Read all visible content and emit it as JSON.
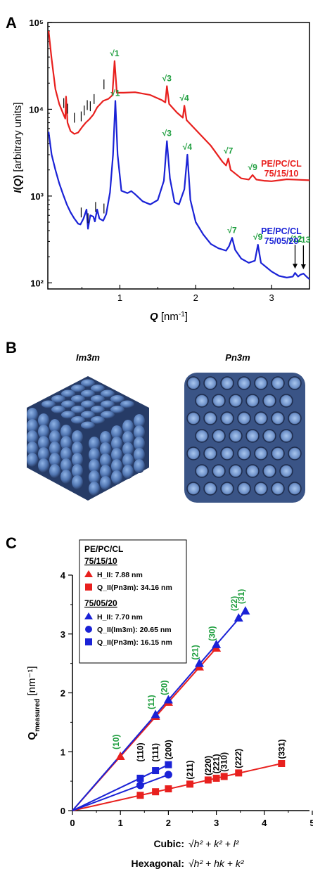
{
  "panels": {
    "A": {
      "label": "A"
    },
    "B": {
      "label": "B",
      "left_title": "Im3m",
      "right_title": "Pn3m"
    },
    "C": {
      "label": "C"
    }
  },
  "colors": {
    "red": "#e8201e",
    "blue": "#1a22d6",
    "green": "#1e9e3e",
    "black": "#000000",
    "surface": "#5b7fb6"
  },
  "chart_data": [
    {
      "type": "line",
      "title": "",
      "xlabel": "Q [nm⁻¹]",
      "ylabel": "I(Q) [arbitrary units]",
      "y_scale": "log",
      "xlim": [
        0.05,
        3.5
      ],
      "ylim": [
        85,
        100000
      ],
      "x_ticks": [
        1,
        2,
        3
      ],
      "y_tick_labels": [
        "10⁵",
        "10⁴",
        "10³",
        "10²"
      ],
      "y_ticks": [
        100000,
        10000,
        1000,
        100
      ],
      "series": [
        {
          "name": "PE/PC/CL 75/15/10",
          "color": "#e8201e",
          "points": [
            [
              0.06,
              80000
            ],
            [
              0.1,
              38000
            ],
            [
              0.15,
              17000
            ],
            [
              0.2,
              11500
            ],
            [
              0.25,
              9000
            ],
            [
              0.28,
              7800
            ],
            [
              0.29,
              14000
            ],
            [
              0.31,
              7000
            ],
            [
              0.35,
              5600
            ],
            [
              0.4,
              5200
            ],
            [
              0.45,
              5400
            ],
            [
              0.5,
              6200
            ],
            [
              0.55,
              7000
            ],
            [
              0.6,
              7700
            ],
            [
              0.65,
              8700
            ],
            [
              0.7,
              10500
            ],
            [
              0.78,
              12500
            ],
            [
              0.85,
              13200
            ],
            [
              0.9,
              14500
            ],
            [
              0.93,
              36000
            ],
            [
              0.96,
              15500
            ],
            [
              1.05,
              15500
            ],
            [
              1.2,
              15700
            ],
            [
              1.4,
              14600
            ],
            [
              1.55,
              12800
            ],
            [
              1.6,
              12000
            ],
            [
              1.62,
              18500
            ],
            [
              1.65,
              11500
            ],
            [
              1.75,
              9200
            ],
            [
              1.83,
              8000
            ],
            [
              1.85,
              11000
            ],
            [
              1.88,
              7500
            ],
            [
              2.0,
              5800
            ],
            [
              2.2,
              3800
            ],
            [
              2.35,
              2500
            ],
            [
              2.4,
              2250
            ],
            [
              2.43,
              2700
            ],
            [
              2.46,
              2000
            ],
            [
              2.6,
              1600
            ],
            [
              2.7,
              1550
            ],
            [
              2.75,
              1750
            ],
            [
              2.8,
              1550
            ],
            [
              2.9,
              1500
            ],
            [
              3.0,
              1480
            ],
            [
              3.2,
              1560
            ],
            [
              3.35,
              1540
            ],
            [
              3.5,
              1520
            ]
          ],
          "peaks": [
            {
              "label": "√1",
              "q": 0.93
            },
            {
              "label": "√3",
              "q": 1.62
            },
            {
              "label": "√4",
              "q": 1.85
            },
            {
              "label": "√7",
              "q": 2.43
            },
            {
              "label": "√9",
              "q": 2.75
            }
          ],
          "tick_marks_q": [
            0.26,
            0.31,
            0.4,
            0.49,
            0.53,
            0.57,
            0.61,
            0.66,
            0.79
          ]
        },
        {
          "name": "PE/PC/CL 75/05/20",
          "color": "#1a22d6",
          "points": [
            [
              0.06,
              5500
            ],
            [
              0.1,
              3000
            ],
            [
              0.15,
              2000
            ],
            [
              0.2,
              1400
            ],
            [
              0.25,
              1050
            ],
            [
              0.3,
              800
            ],
            [
              0.35,
              650
            ],
            [
              0.4,
              550
            ],
            [
              0.45,
              480
            ],
            [
              0.48,
              470
            ],
            [
              0.52,
              550
            ],
            [
              0.56,
              700
            ],
            [
              0.58,
              420
            ],
            [
              0.61,
              600
            ],
            [
              0.65,
              580
            ],
            [
              0.67,
              510
            ],
            [
              0.7,
              700
            ],
            [
              0.73,
              550
            ],
            [
              0.78,
              520
            ],
            [
              0.82,
              620
            ],
            [
              0.87,
              1100
            ],
            [
              0.91,
              3000
            ],
            [
              0.94,
              12500
            ],
            [
              0.97,
              3000
            ],
            [
              1.02,
              1150
            ],
            [
              1.1,
              1080
            ],
            [
              1.15,
              1140
            ],
            [
              1.2,
              1050
            ],
            [
              1.3,
              870
            ],
            [
              1.4,
              800
            ],
            [
              1.5,
              900
            ],
            [
              1.58,
              1500
            ],
            [
              1.62,
              4300
            ],
            [
              1.66,
              1600
            ],
            [
              1.72,
              850
            ],
            [
              1.78,
              800
            ],
            [
              1.85,
              1200
            ],
            [
              1.89,
              3000
            ],
            [
              1.93,
              900
            ],
            [
              2.0,
              500
            ],
            [
              2.1,
              360
            ],
            [
              2.2,
              280
            ],
            [
              2.3,
              250
            ],
            [
              2.4,
              235
            ],
            [
              2.44,
              265
            ],
            [
              2.48,
              330
            ],
            [
              2.52,
              240
            ],
            [
              2.6,
              190
            ],
            [
              2.7,
              170
            ],
            [
              2.78,
              180
            ],
            [
              2.82,
              275
            ],
            [
              2.86,
              170
            ],
            [
              3.0,
              135
            ],
            [
              3.1,
              120
            ],
            [
              3.2,
              115
            ],
            [
              3.28,
              118
            ],
            [
              3.31,
              130
            ],
            [
              3.35,
              118
            ],
            [
              3.38,
              124
            ],
            [
              3.42,
              128
            ],
            [
              3.46,
              118
            ],
            [
              3.5,
              110
            ]
          ],
          "peaks": [
            {
              "label": "√1",
              "q": 0.94
            },
            {
              "label": "√3",
              "q": 1.62
            },
            {
              "label": "√4",
              "q": 1.89
            },
            {
              "label": "√7",
              "q": 2.48
            },
            {
              "label": "√9",
              "q": 2.82
            },
            {
              "label": "√12",
              "q": 3.31
            },
            {
              "label": "√13",
              "q": 3.42
            }
          ],
          "tick_marks_q": [
            0.49,
            0.58,
            0.68,
            0.79
          ]
        }
      ]
    },
    {
      "type": "scatter",
      "title": "",
      "xlabel_cubic": "Cubic:",
      "xlabel_cubic_formula": "√h² + k² + l²",
      "xlabel_hex": "Hexagonal:",
      "xlabel_hex_formula": "√h² + hk + k²",
      "ylabel": "Q_measured [nm⁻¹]",
      "ylabel_main": "Q",
      "ylabel_sub": "measured",
      "ylabel_unit": "[nm⁻¹]",
      "xlim": [
        0,
        5
      ],
      "ylim": [
        0,
        4
      ],
      "x_ticks": [
        0,
        1,
        2,
        3,
        4,
        5
      ],
      "y_ticks": [
        0,
        1,
        2,
        3,
        4
      ],
      "legend": {
        "title": "PE/PC/CL",
        "group1": "75/15/10",
        "group1_items": [
          {
            "marker": "triangle",
            "color": "red",
            "label": "H_II: 7.88 nm"
          },
          {
            "marker": "square",
            "color": "red",
            "label": "Q_II(Pn3m): 34.16 nm"
          }
        ],
        "group2": "75/05/20",
        "group2_items": [
          {
            "marker": "triangle",
            "color": "blue",
            "label": "H_II: 7.70 nm"
          },
          {
            "marker": "circle",
            "color": "blue",
            "label": "Q_II(Im3m): 20.65 nm"
          },
          {
            "marker": "square",
            "color": "blue",
            "label": "Q_II(Pn3m): 16.15 nm"
          }
        ]
      },
      "series": [
        {
          "name": "H_II: 7.88 nm",
          "color": "red",
          "marker": "triangle",
          "x": [
            1,
            1.732,
            2,
            2.646,
            3
          ],
          "y": [
            0.92,
            1.6,
            1.84,
            2.44,
            2.76
          ]
        },
        {
          "name": "Q_II(Pn3m): 34.16 nm",
          "color": "red",
          "marker": "square",
          "x": [
            1.414,
            1.732,
            2,
            2.449,
            2.828,
            3,
            3.162,
            3.464,
            4.359
          ],
          "y": [
            0.26,
            0.32,
            0.37,
            0.45,
            0.52,
            0.55,
            0.58,
            0.64,
            0.8
          ]
        },
        {
          "name": "H_II: 7.70 nm",
          "color": "blue",
          "marker": "triangle",
          "x": [
            1.732,
            2,
            2.646,
            3,
            3.464,
            3.606
          ],
          "y": [
            1.63,
            1.88,
            2.5,
            2.82,
            3.27,
            3.39
          ]
        },
        {
          "name": "Q_II(Im3m): 20.65 nm",
          "color": "blue",
          "marker": "circle",
          "x": [
            1.414,
            2
          ],
          "y": [
            0.43,
            0.61
          ]
        },
        {
          "name": "Q_II(Pn3m): 16.15 nm",
          "color": "blue",
          "marker": "square",
          "x": [
            1.414,
            1.732,
            2
          ],
          "y": [
            0.55,
            0.68,
            0.78
          ]
        }
      ],
      "hex_labels": [
        {
          "text": "(10)",
          "x": 1,
          "y": 0.92
        },
        {
          "text": "(11)",
          "x": 1.732,
          "y": 1.6
        },
        {
          "text": "(20)",
          "x": 2,
          "y": 1.84
        },
        {
          "text": "(21)",
          "x": 2.646,
          "y": 2.44
        },
        {
          "text": "(30)",
          "x": 3,
          "y": 2.76
        },
        {
          "text": "(22)",
          "x": 3.464,
          "y": 3.27
        },
        {
          "text": "(31)",
          "x": 3.606,
          "y": 3.39
        }
      ],
      "cubic_labels": [
        {
          "text": "(110)",
          "x": 1.414,
          "y": 0.78
        },
        {
          "text": "(111)",
          "x": 1.732,
          "y": 0.78
        },
        {
          "text": "(200)",
          "x": 2,
          "y": 0.82
        },
        {
          "text": "(211)",
          "x": 2.449,
          "y": 0.48
        },
        {
          "text": "(220)",
          "x": 2.828,
          "y": 0.55
        },
        {
          "text": "(221)",
          "x": 3,
          "y": 0.58
        },
        {
          "text": "(310)",
          "x": 3.162,
          "y": 0.61
        },
        {
          "text": "(222)",
          "x": 3.464,
          "y": 0.67
        },
        {
          "text": "(331)",
          "x": 4.359,
          "y": 0.83
        }
      ]
    }
  ],
  "panel_a_labels": {
    "red_line1": "PE/PC/CL",
    "red_line2": "75/15/10",
    "blue_line1": "PE/PC/CL",
    "blue_line2": "75/05/20"
  }
}
